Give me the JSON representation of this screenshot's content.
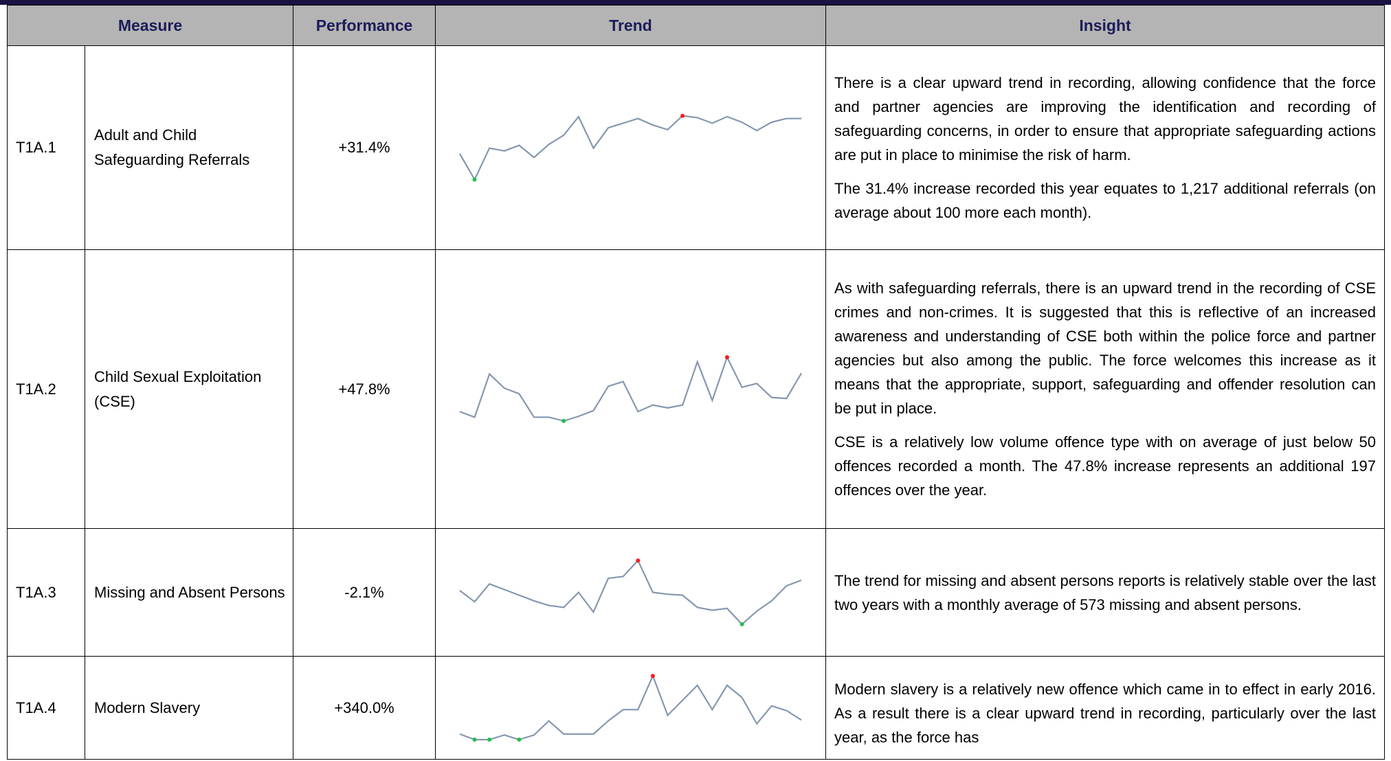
{
  "table": {
    "headers": [
      "Measure",
      "Performance",
      "Trend",
      "Insight"
    ],
    "rows": [
      {
        "id": "T1A.1",
        "measure": "Adult and Child Safeguarding Referrals",
        "performance": "+31.4%",
        "trend": [
          35,
          7,
          41,
          38,
          44,
          31,
          45,
          55,
          75,
          41,
          63,
          68,
          73,
          66,
          61,
          76,
          74,
          68,
          75,
          69,
          60,
          69,
          73,
          73
        ],
        "insight": [
          "There is a clear upward trend in recording, allowing confidence that the force and partner agencies are improving the identification and recording of safeguarding concerns, in order to ensure that appropriate safeguarding actions are put in place to minimise the risk of harm.",
          "The 31.4% increase recorded this year equates to 1,217 additional referrals (on average about 100 more each month)."
        ]
      },
      {
        "id": "T1A.2",
        "measure": "Child Sexual Exploitation (CSE)",
        "performance": "+47.8%",
        "trend": [
          34,
          28,
          74,
          59,
          53,
          28,
          28,
          24,
          29,
          35,
          61,
          66,
          34,
          41,
          38,
          41,
          87,
          46,
          92,
          60,
          64,
          49,
          48,
          75
        ],
        "insight": [
          "As with safeguarding referrals, there is an upward trend in the recording of CSE crimes and non-crimes.  It is suggested that this is reflective of an increased awareness and understanding of CSE both within the police force and partner agencies but also among the public.  The force welcomes this increase as it means that the appropriate, support, safeguarding and offender resolution can be put in place.",
          "CSE is a relatively low volume offence type with on average of just below 50 offences recorded a month.  The 47.8% increase represents an additional 197 offences over the year."
        ]
      },
      {
        "id": "T1A.3",
        "measure": "Missing and Absent Persons",
        "performance": "-2.1%",
        "trend": [
          51,
          39,
          58,
          52,
          46,
          40,
          35,
          33,
          49,
          28,
          64,
          66,
          83,
          49,
          47,
          46,
          33,
          30,
          32,
          15,
          29,
          40,
          56,
          62
        ],
        "insight": [
          "The trend for missing and absent persons reports is relatively stable over the last two years with a monthly average of 573 missing and absent persons."
        ]
      },
      {
        "id": "T1A.4",
        "measure": "Modern Slavery",
        "performance": "+340.0%",
        "trend": [
          19,
          13,
          13,
          18,
          13,
          18,
          33,
          19,
          19,
          19,
          33,
          45,
          45,
          81,
          39,
          55,
          71,
          45,
          71,
          58,
          30,
          49,
          44,
          34
        ],
        "insight": [
          "Modern slavery is a relatively new offence which came in to effect in early 2016.  As a result there is a clear upward trend in recording, particularly over the last year, as the force has"
        ]
      }
    ]
  }
}
